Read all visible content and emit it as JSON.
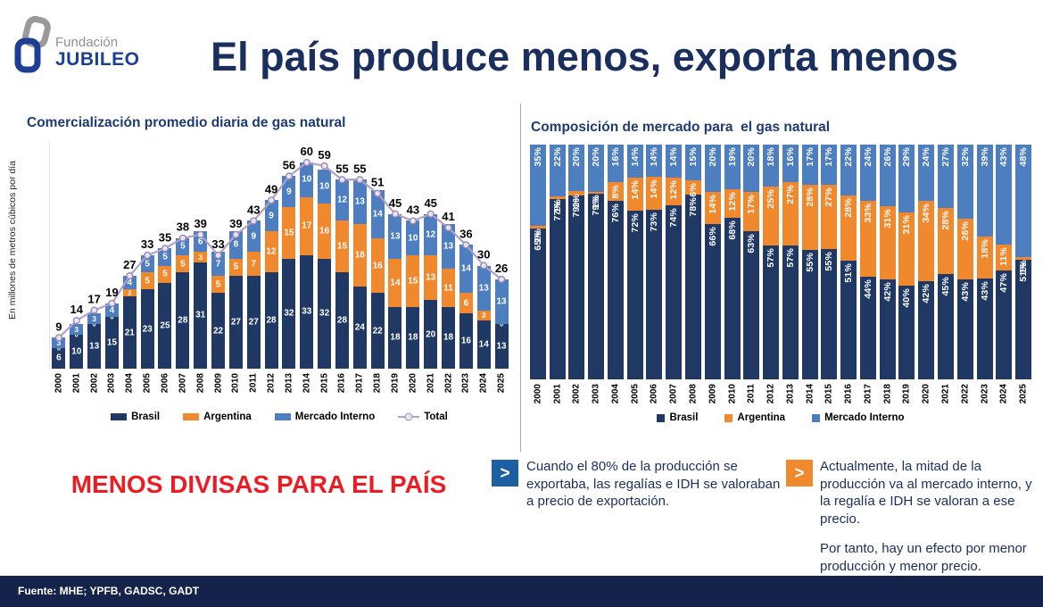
{
  "logo": {
    "top": "Fundación",
    "bottom": "JUBILEO"
  },
  "header": {
    "title": "El país produce menos, exporta menos"
  },
  "chart_data": [
    {
      "type": "bar",
      "variant": "stacked-bars-with-total-line",
      "title": "Comercialización promedio diaria de gas natural",
      "ylabel": "En millones de metros cúbicos por día",
      "xlabel": "",
      "ylim": [
        0,
        60
      ],
      "grid": false,
      "legend_position": "bottom",
      "categories": [
        "2000",
        "2001",
        "2002",
        "2003",
        "2004",
        "2005",
        "2006",
        "2007",
        "2008",
        "2009",
        "2010",
        "2011",
        "2012",
        "2013",
        "2014",
        "2015",
        "2016",
        "2017",
        "2018",
        "2019",
        "2020",
        "2021",
        "2022",
        "2023",
        "2024",
        "2025"
      ],
      "series": [
        {
          "name": "Brasil",
          "color": "#1f3864",
          "values": [
            6,
            10,
            13,
            15,
            21,
            23,
            25,
            28,
            31,
            22,
            27,
            27,
            28,
            32,
            33,
            32,
            28,
            24,
            22,
            18,
            18,
            20,
            18,
            16,
            14,
            13
          ]
        },
        {
          "name": "Argentina",
          "color": "#f0882d",
          "values": [
            0,
            0,
            0,
            0,
            2,
            5,
            5,
            5,
            3,
            5,
            5,
            7,
            12,
            15,
            17,
            16,
            15,
            18,
            16,
            14,
            15,
            13,
            11,
            6,
            3,
            0
          ]
        },
        {
          "name": "Mercado Interno",
          "color": "#4d7ebf",
          "values": [
            3,
            3,
            3,
            4,
            4,
            5,
            5,
            5,
            6,
            7,
            8,
            9,
            9,
            9,
            10,
            10,
            12,
            13,
            14,
            13,
            10,
            12,
            13,
            14,
            13,
            13
          ]
        }
      ],
      "total": {
        "name": "Total",
        "color": "#b1a0c7",
        "values": [
          9,
          14,
          17,
          19,
          27,
          33,
          35,
          38,
          39,
          33,
          39,
          43,
          49,
          56,
          60,
          59,
          55,
          55,
          51,
          45,
          43,
          45,
          41,
          36,
          30,
          26
        ]
      }
    },
    {
      "type": "bar",
      "variant": "stacked-100-percent",
      "title": "Composición de mercado para  el gas natural",
      "unit": "%",
      "grid": false,
      "legend_position": "bottom",
      "categories": [
        "2000",
        "2001",
        "2002",
        "2003",
        "2004",
        "2005",
        "2006",
        "2007",
        "2008",
        "2009",
        "2010",
        "2011",
        "2012",
        "2013",
        "2014",
        "2015",
        "2016",
        "2017",
        "2018",
        "2019",
        "2020",
        "2021",
        "2022",
        "2023",
        "2024",
        "2025"
      ],
      "series": [
        {
          "name": "Brasil",
          "color": "#1f3864",
          "values": [
            65,
            77,
            79,
            79,
            76,
            72,
            73,
            74,
            78,
            66,
            68,
            63,
            57,
            57,
            55,
            55,
            51,
            44,
            42,
            40,
            42,
            45,
            43,
            43,
            47,
            51
          ]
        },
        {
          "name": "Argentina",
          "color": "#f0882d",
          "values": [
            1,
            1,
            2,
            1,
            8,
            14,
            14,
            12,
            6,
            14,
            12,
            17,
            25,
            27,
            28,
            27,
            28,
            33,
            31,
            31,
            34,
            28,
            26,
            18,
            11,
            1
          ]
        },
        {
          "name": "Mercado Interno",
          "color": "#4d7ebf",
          "values": [
            35,
            22,
            20,
            20,
            16,
            14,
            14,
            14,
            15,
            20,
            19,
            20,
            18,
            16,
            17,
            17,
            22,
            24,
            26,
            29,
            24,
            27,
            32,
            39,
            43,
            48
          ]
        }
      ]
    }
  ],
  "bottom": {
    "headline": "MENOS DIVISAS PARA EL PAÍS",
    "callouts": [
      {
        "icon": "chevron-right-icon",
        "accent": "#1d5fa3",
        "paragraphs": [
          "Cuando el 80% de la producción se exportaba, las regalías e IDH se valoraban a precio de exportación."
        ]
      },
      {
        "icon": "chevron-right-icon",
        "accent": "#f0882d",
        "paragraphs": [
          "Actualmente, la mitad de la producción va al mercado interno, y la regalía e IDH se valoran a ese precio.",
          "Por tanto, hay un efecto por menor producción y menor precio."
        ]
      }
    ]
  },
  "footer": {
    "source": "Fuente: MHE; YPFB, GADSC, GADT"
  },
  "colors": {
    "brasil": "#1f3864",
    "argentina": "#f0882d",
    "mercado_interno": "#4d7ebf",
    "total_line": "#b1a0c7",
    "main_title": "#1b2f5e",
    "chart_title": "#1e3a72",
    "headline_red": "#ec1c24",
    "footer_bg": "#15224a"
  },
  "icons": {
    "chevron_glyph": ">"
  }
}
